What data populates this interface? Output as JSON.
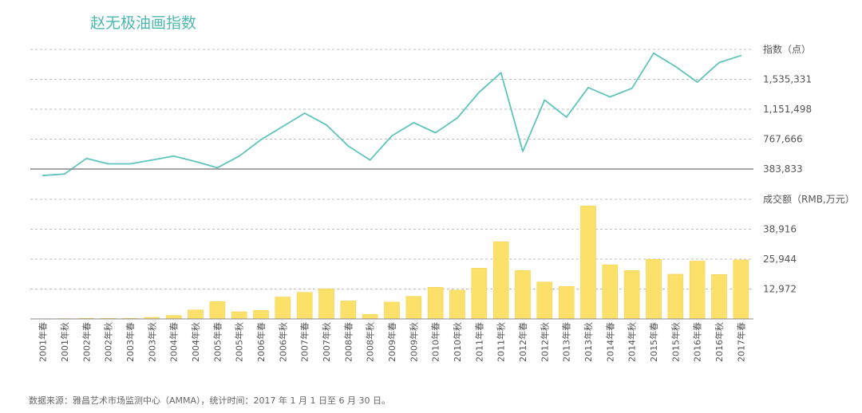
{
  "title": "赵无极油画指数",
  "source_note": "数据来源：雅昌艺术市场监测中心（AMMA），统计时间：2017 年 1 月 1 日至 6 月 30 日。",
  "colors": {
    "title": "#4cb8b0",
    "line": "#5fc4bc",
    "bar": "#fbe06a",
    "bar_edge": "#f3d24a",
    "grid": "#bdbdbd",
    "axis": "#888888"
  },
  "chart_data": [
    {
      "type": "line",
      "ylabel": "指数（点）",
      "ylim": [
        383833,
        1919164
      ],
      "yticks": [
        383833,
        767666,
        1151498,
        1535331
      ],
      "ytick_labels": [
        "383,833",
        "767,666",
        "1,151,498",
        "1,535,331"
      ],
      "grid": true,
      "categories": [
        "2001年春",
        "2001年秋",
        "2002年春",
        "2002年秋",
        "2003年春",
        "2003年秋",
        "2004年春",
        "2004年秋",
        "2005年春",
        "2005年秋",
        "2006年春",
        "2006年秋",
        "2007年春",
        "2007年秋",
        "2008年春",
        "2008年秋",
        "2009年春",
        "2009年秋",
        "2010年春",
        "2010年秋",
        "2011年春",
        "2011年秋",
        "2012年春",
        "2012年秋",
        "2013年春",
        "2013年秋",
        "2014年春",
        "2014年秋",
        "2015年春",
        "2015年秋",
        "2016年春",
        "2016年秋",
        "2017年春"
      ],
      "values": [
        300000,
        320000,
        520000,
        450000,
        450000,
        500000,
        550000,
        480000,
        400000,
        550000,
        760000,
        930000,
        1100000,
        950000,
        680000,
        500000,
        810000,
        980000,
        850000,
        1040000,
        1370000,
        1620000,
        610000,
        1270000,
        1050000,
        1430000,
        1310000,
        1420000,
        1870000,
        1700000,
        1500000,
        1750000,
        1840000
      ]
    },
    {
      "type": "bar",
      "ylabel": "成交额（RMB,万元）",
      "ylim": [
        0,
        51888
      ],
      "yticks": [
        12972,
        25944,
        38916
      ],
      "ytick_labels": [
        "12,972",
        "25,944",
        "38,916"
      ],
      "grid": true,
      "categories": [
        "2001年春",
        "2001年秋",
        "2002年春",
        "2002年秋",
        "2003年春",
        "2003年秋",
        "2004年春",
        "2004年秋",
        "2005年春",
        "2005年秋",
        "2006年春",
        "2006年秋",
        "2007年春",
        "2007年秋",
        "2008年春",
        "2008年秋",
        "2009年春",
        "2009年秋",
        "2010年春",
        "2010年秋",
        "2011年春",
        "2011年秋",
        "2012年春",
        "2012年秋",
        "2013年春",
        "2013年秋",
        "2014年春",
        "2014年秋",
        "2015年春",
        "2015年秋",
        "2016年春",
        "2016年秋",
        "2017年春"
      ],
      "values": [
        100,
        150,
        300,
        250,
        300,
        700,
        1500,
        3900,
        7500,
        3100,
        3700,
        9500,
        11500,
        13000,
        7800,
        2000,
        7300,
        9800,
        13700,
        12500,
        22000,
        33500,
        21000,
        16000,
        14100,
        49000,
        23500,
        21000,
        25900,
        19400,
        25100,
        19300,
        25600
      ]
    }
  ]
}
